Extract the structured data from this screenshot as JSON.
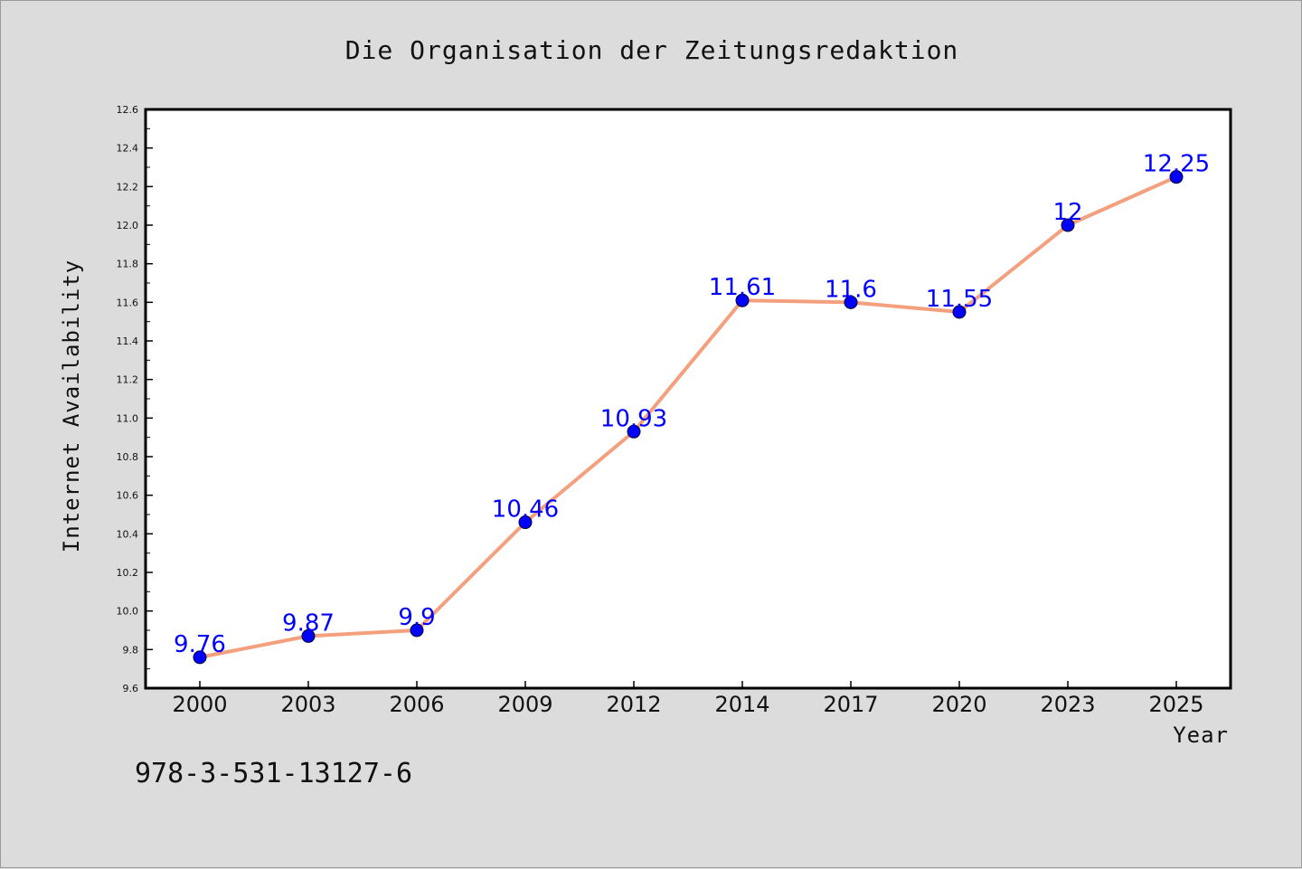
{
  "chart_data": {
    "type": "line",
    "title": "Die Organisation der Zeitungsredaktion",
    "xlabel": "Year",
    "ylabel": "Internet Availability",
    "categories": [
      "2000",
      "2003",
      "2006",
      "2009",
      "2012",
      "2014",
      "2017",
      "2020",
      "2023",
      "2025"
    ],
    "series": [
      {
        "values": [
          9.76,
          9.87,
          9.9,
          10.46,
          10.93,
          11.61,
          11.6,
          11.55,
          12,
          12.25
        ],
        "labels": [
          "9.76",
          "9.87",
          "9.9",
          "10.46",
          "10.93",
          "11.61",
          "11.6",
          "11.55",
          "12",
          "12.25"
        ],
        "line_color": "#f4a07e",
        "marker_color": "#0000ff"
      }
    ],
    "ylim": [
      9.6,
      12.6
    ],
    "yticks": [
      "9.6",
      "9.8",
      "10.0",
      "10.2",
      "10.4",
      "10.6",
      "10.8",
      "11.0",
      "11.2",
      "11.4",
      "11.6",
      "11.8",
      "12.0",
      "12.2",
      "12.4",
      "12.6"
    ],
    "grid": false,
    "legend": "none"
  },
  "footnote": "978-3-531-13127-6",
  "colors": {
    "background": "#dcdcdc",
    "plot_background": "#ffffff",
    "line": "#f4a07e",
    "marker": "#0000ff",
    "data_label": "#0000ff"
  }
}
